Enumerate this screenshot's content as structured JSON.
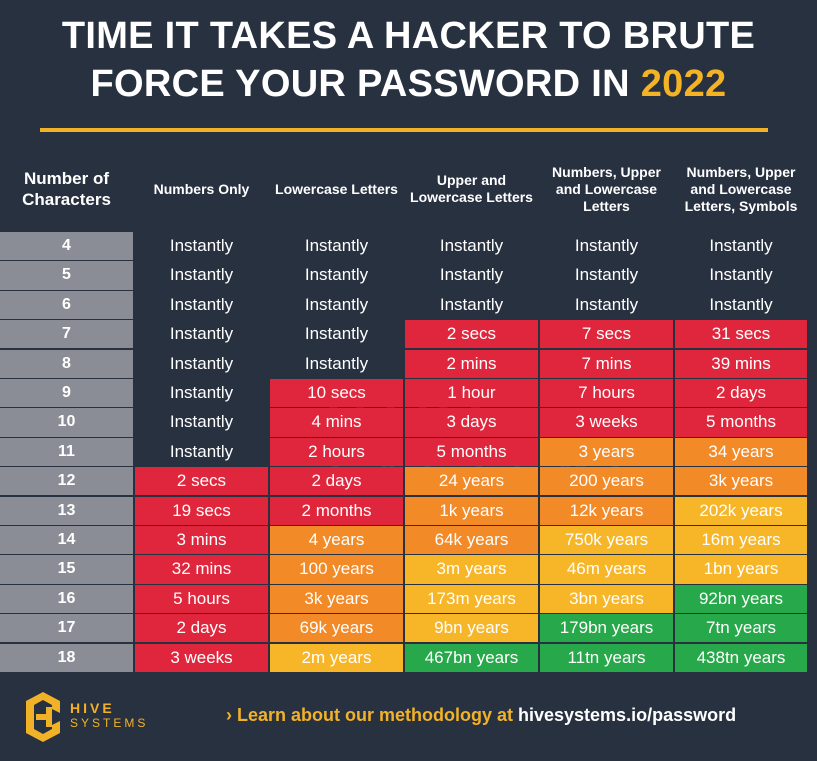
{
  "title": {
    "line1": "TIME IT TAKES A HACKER TO BRUTE",
    "line2_prefix": "FORCE YOUR PASSWORD IN ",
    "line2_year": "2022"
  },
  "colors": {
    "background": "#283140",
    "accent": "#f2b227",
    "instantly": "#8d4ab8",
    "red": "#e0263c",
    "orange": "#f28a28",
    "yellow": "#f7b528",
    "green": "#27a84a",
    "row_label": "#8a8d95"
  },
  "chart_data": {
    "type": "table",
    "title": "TIME IT TAKES A HACKER TO BRUTE FORCE YOUR PASSWORD IN 2022",
    "columns": [
      "Number of Characters",
      "Numbers Only",
      "Lowercase Letters",
      "Upper and Lowercase Letters",
      "Numbers, Upper and Lowercase Letters",
      "Numbers, Upper and Lowercase Letters, Symbols"
    ],
    "rows": [
      {
        "chars": "4",
        "values": [
          "Instantly",
          "Instantly",
          "Instantly",
          "Instantly",
          "Instantly"
        ],
        "levels": [
          "instantly",
          "instantly",
          "instantly",
          "instantly",
          "instantly"
        ]
      },
      {
        "chars": "5",
        "values": [
          "Instantly",
          "Instantly",
          "Instantly",
          "Instantly",
          "Instantly"
        ],
        "levels": [
          "instantly",
          "instantly",
          "instantly",
          "instantly",
          "instantly"
        ]
      },
      {
        "chars": "6",
        "values": [
          "Instantly",
          "Instantly",
          "Instantly",
          "Instantly",
          "Instantly"
        ],
        "levels": [
          "instantly",
          "instantly",
          "instantly",
          "instantly",
          "instantly"
        ]
      },
      {
        "chars": "7",
        "values": [
          "Instantly",
          "Instantly",
          "2 secs",
          "7 secs",
          "31 secs"
        ],
        "levels": [
          "instantly",
          "instantly",
          "red",
          "red",
          "red"
        ]
      },
      {
        "chars": "8",
        "values": [
          "Instantly",
          "Instantly",
          "2 mins",
          "7 mins",
          "39 mins"
        ],
        "levels": [
          "instantly",
          "instantly",
          "red",
          "red",
          "red"
        ]
      },
      {
        "chars": "9",
        "values": [
          "Instantly",
          "10 secs",
          "1 hour",
          "7 hours",
          "2 days"
        ],
        "levels": [
          "instantly",
          "red",
          "red",
          "red",
          "red"
        ]
      },
      {
        "chars": "10",
        "values": [
          "Instantly",
          "4 mins",
          "3 days",
          "3 weeks",
          "5 months"
        ],
        "levels": [
          "instantly",
          "red",
          "red",
          "red",
          "red"
        ]
      },
      {
        "chars": "11",
        "values": [
          "Instantly",
          "2 hours",
          "5 months",
          "3 years",
          "34 years"
        ],
        "levels": [
          "instantly",
          "red",
          "red",
          "orange",
          "orange"
        ]
      },
      {
        "chars": "12",
        "values": [
          "2 secs",
          "2 days",
          "24 years",
          "200 years",
          "3k years"
        ],
        "levels": [
          "red",
          "red",
          "orange",
          "orange",
          "orange"
        ]
      },
      {
        "chars": "13",
        "values": [
          "19 secs",
          "2 months",
          "1k years",
          "12k years",
          "202k years"
        ],
        "levels": [
          "red",
          "red",
          "orange",
          "orange",
          "yellow"
        ]
      },
      {
        "chars": "14",
        "values": [
          "3 mins",
          "4 years",
          "64k years",
          "750k years",
          "16m years"
        ],
        "levels": [
          "red",
          "orange",
          "orange",
          "yellow",
          "yellow"
        ]
      },
      {
        "chars": "15",
        "values": [
          "32 mins",
          "100 years",
          "3m years",
          "46m years",
          "1bn years"
        ],
        "levels": [
          "red",
          "orange",
          "yellow",
          "yellow",
          "yellow"
        ]
      },
      {
        "chars": "16",
        "values": [
          "5 hours",
          "3k years",
          "173m years",
          "3bn years",
          "92bn years"
        ],
        "levels": [
          "red",
          "orange",
          "yellow",
          "yellow",
          "green"
        ]
      },
      {
        "chars": "17",
        "values": [
          "2 days",
          "69k years",
          "9bn years",
          "179bn years",
          "7tn years"
        ],
        "levels": [
          "red",
          "orange",
          "yellow",
          "green",
          "green"
        ]
      },
      {
        "chars": "18",
        "values": [
          "3 weeks",
          "2m years",
          "467bn years",
          "11tn years",
          "438tn years"
        ],
        "levels": [
          "red",
          "yellow",
          "green",
          "green",
          "green"
        ]
      }
    ]
  },
  "watermark": {
    "line1": "HIVE",
    "line2": "SYSTEMS"
  },
  "footer": {
    "logo_line1": "HIVE",
    "logo_line2": "SYSTEMS",
    "link_prefix": "› Learn about our methodology at ",
    "link_url": "hivesystems.io/password"
  }
}
